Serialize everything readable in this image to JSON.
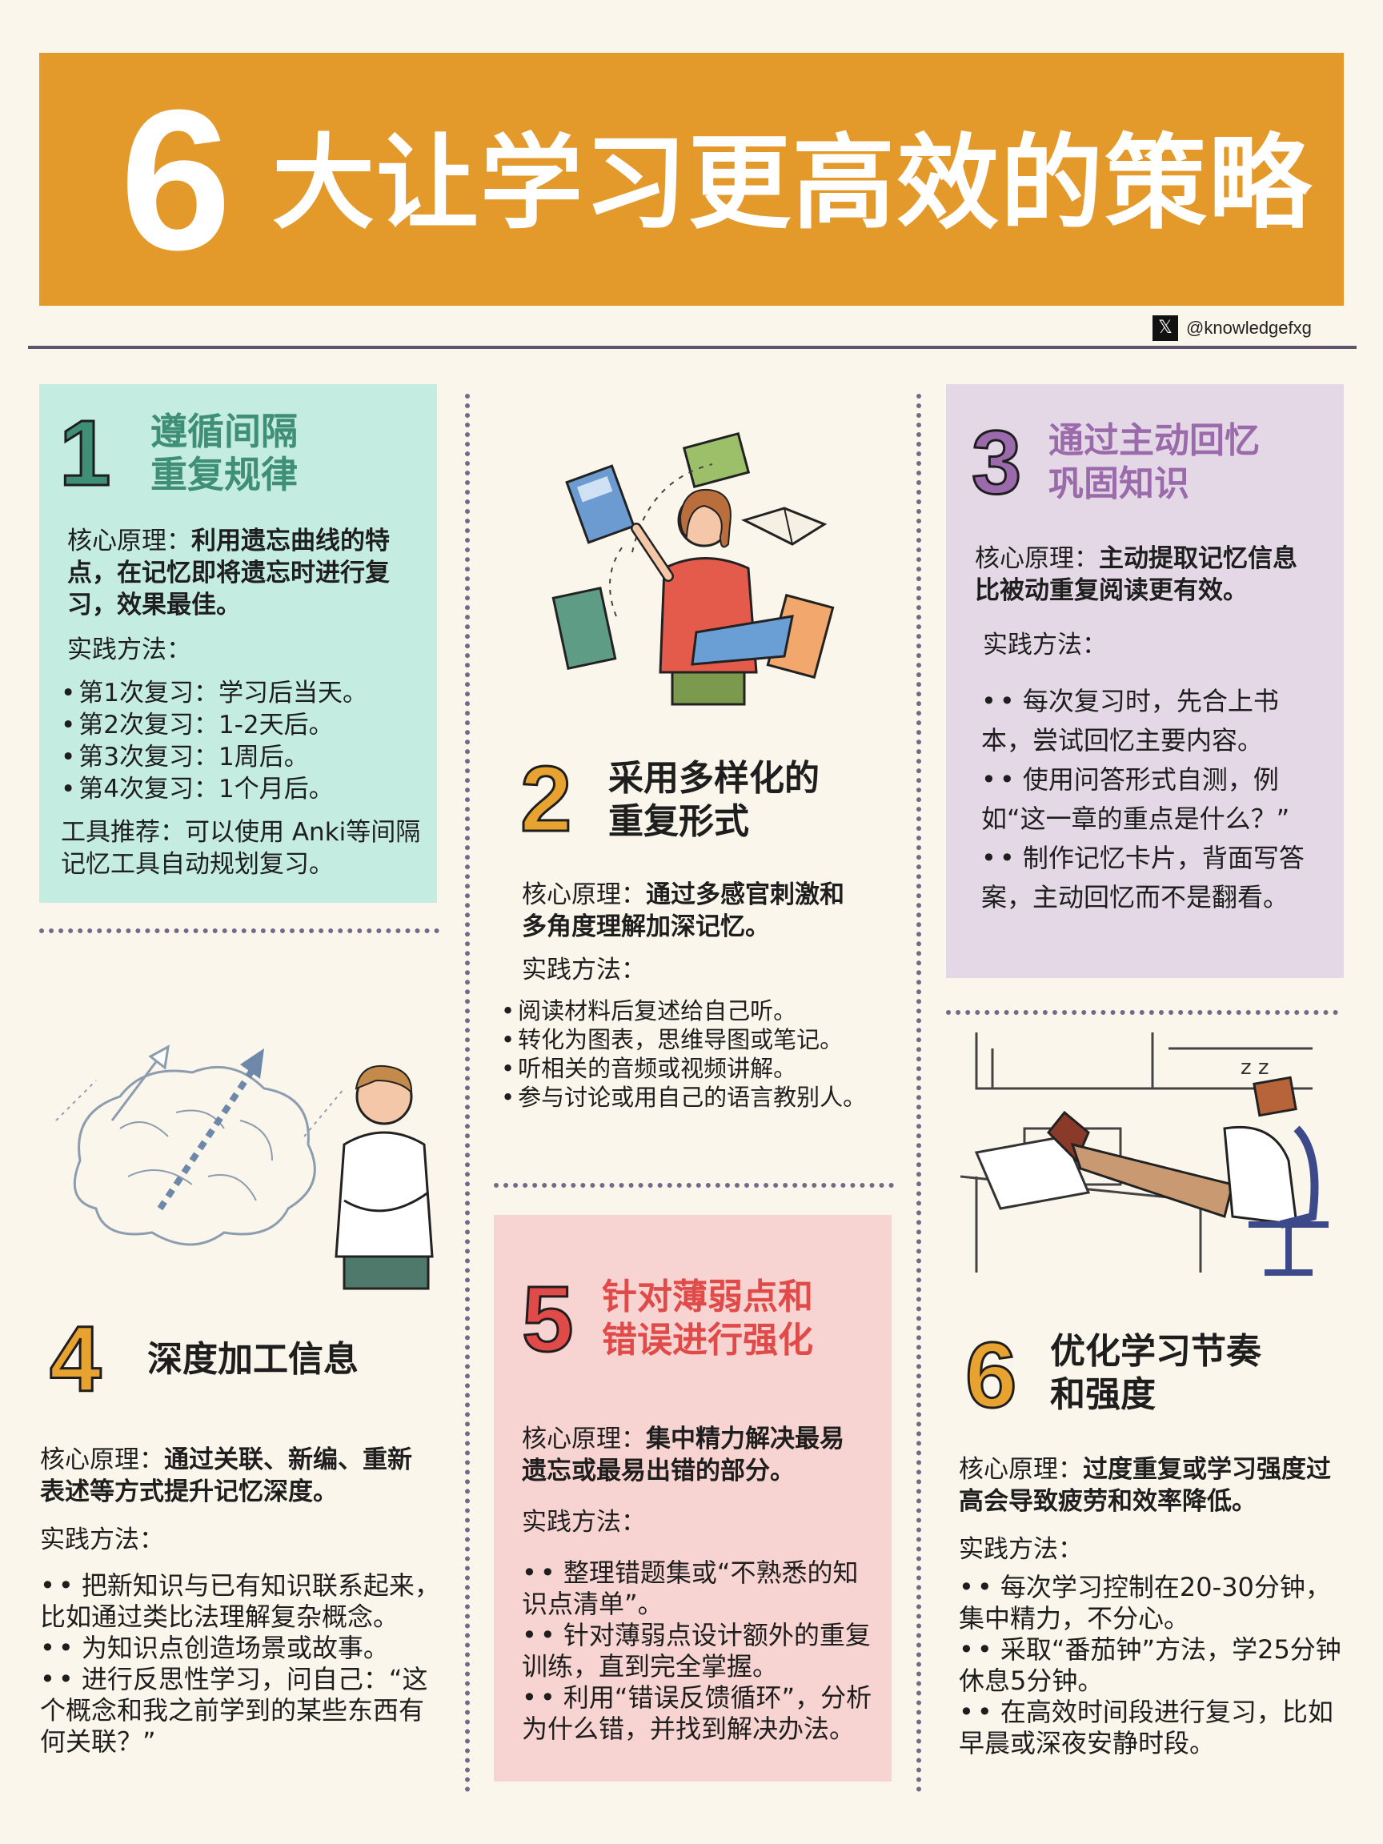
{
  "header": {
    "number": "6",
    "title": "大让学习更高效的策略",
    "handle": "@knowledgefxg",
    "x_icon": "x-logo-icon"
  },
  "sections": [
    {
      "number": "1",
      "title_line1": "遵循间隔",
      "title_line2": "重复规律",
      "principle_label": "核心原理：",
      "principle_text": "利用遗忘曲线的特点，在记忆即将遗忘时进行复习，效果最佳。",
      "practice_label": "实践方法：",
      "items": [
        "第1次复习：学习后当天。",
        "第2次复习：1-2天后。",
        "第3次复习：1周后。",
        "第4次复习：1个月后。"
      ],
      "tools": "工具推荐：可以使用 Anki等间隔记忆工具自动规划复习。"
    },
    {
      "number": "2",
      "title_line1": "采用多样化的",
      "title_line2": "重复形式",
      "principle_label": "核心原理：",
      "principle_text": "通过多感官刺激和多角度理解加深记忆。",
      "practice_label": "实践方法：",
      "items": [
        "阅读材料后复述给自己听。",
        "转化为图表，思维导图或笔记。",
        "听相关的音频或视频讲解。",
        "参与讨论或用自己的语言教别人。"
      ]
    },
    {
      "number": "3",
      "title_line1": "通过主动回忆",
      "title_line2": "巩固知识",
      "principle_label": "核心原理：",
      "principle_text": "主动提取记忆信息比被动重复阅读更有效。",
      "practice_label": "实践方法：",
      "items": [
        "每次复习时，先合上书本，尝试回忆主要内容。",
        "使用问答形式自测，例如“这一章的重点是什么？”",
        "制作记忆卡片，背面写答案，主动回忆而不是翻看。"
      ]
    },
    {
      "number": "4",
      "title_line1": "深度加工信息",
      "principle_label": "核心原理：",
      "principle_text": "通过关联、新编、重新表述等方式提升记忆深度。",
      "practice_label": "实践方法：",
      "items": [
        "把新知识与已有知识联系起来，比如通过类比法理解复杂概念。",
        "为知识点创造场景或故事。",
        "进行反思性学习，问自己：“这个概念和我之前学到的某些东西有何关联？”"
      ]
    },
    {
      "number": "5",
      "title_line1": "针对薄弱点和",
      "title_line2": "错误进行强化",
      "principle_label": "核心原理：",
      "principle_text": "集中精力解决最易遗忘或最易出错的部分。",
      "practice_label": "实践方法：",
      "items": [
        "整理错题集或“不熟悉的知识点清单”。",
        "针对薄弱点设计额外的重复训练，直到完全掌握。",
        "利用“错误反馈循环”，分析为什么错，并找到解决办法。"
      ]
    },
    {
      "number": "6",
      "title_line1": "优化学习节奏",
      "title_line2": "和强度",
      "principle_label": "核心原理：",
      "principle_text": "过度重复或学习强度过高会导致疲劳和效率降低。",
      "practice_label": "实践方法：",
      "items": [
        "每次学习控制在20-30分钟，集中精力，不分心。",
        "采取“番茄钟”方法，学25分钟休息5分钟。",
        "在高效时间段进行复习，比如早晨或深夜安静时段。"
      ]
    }
  ],
  "colors": {
    "banner": "#e4992b",
    "green": "#3f8f76",
    "purple": "#9a6aab",
    "red": "#e04a48",
    "orange": "#e8a22f",
    "background": "#fbf6ec"
  }
}
